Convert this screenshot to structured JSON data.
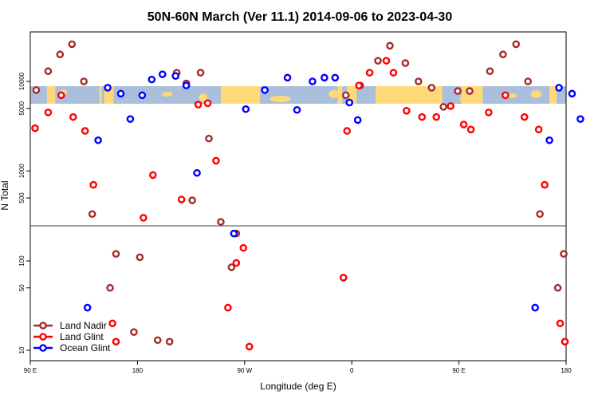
{
  "chart_data": {
    "type": "scatter",
    "title": "50N-60N March (Ver 11.1)   2014-09-06 to 2023-04-30",
    "xlabel": "Longitude (deg E)",
    "ylabel": "N Total",
    "x_ticks": [
      {
        "value": 90,
        "label": "90 E"
      },
      {
        "value": 180,
        "label": "180"
      },
      {
        "value": 270,
        "label": "90 W"
      },
      {
        "value": 360,
        "label": "0"
      },
      {
        "value": 450,
        "label": "90 E"
      },
      {
        "value": 540,
        "label": "180"
      }
    ],
    "xlim": [
      90,
      540
    ],
    "y_scale": "log (two panels)",
    "upper_panel": {
      "ylim": [
        200,
        30000
      ],
      "y_ticks": [
        "500",
        "1000",
        "5000",
        "10000"
      ]
    },
    "lower_panel": {
      "ylim": [
        8,
        220
      ],
      "y_ticks": [
        "10",
        "50",
        "100"
      ]
    },
    "legend": {
      "position": "bottom-left"
    },
    "colors": {
      "land_nadir": "#a52a2a",
      "land_glint": "#ff0000",
      "ocean_glint": "#0000ff",
      "map_land": "#ffd977",
      "map_ocean": "#a9bfdc"
    },
    "series": [
      {
        "name": "Land Nadir",
        "color": "#a52a2a",
        "points": [
          [
            95,
            8000
          ],
          [
            105,
            13000
          ],
          [
            115,
            20000
          ],
          [
            125,
            26000
          ],
          [
            135,
            10000
          ],
          [
            142,
            330
          ],
          [
            157,
            50
          ],
          [
            162,
            120
          ],
          [
            177,
            16
          ],
          [
            182,
            110
          ],
          [
            197,
            13
          ],
          [
            207,
            12.5
          ],
          [
            213,
            12500
          ],
          [
            221,
            9500
          ],
          [
            226,
            470
          ],
          [
            233,
            12500
          ],
          [
            240,
            2300
          ],
          [
            250,
            270
          ],
          [
            259,
            85
          ],
          [
            263,
            200
          ],
          [
            355,
            7000
          ],
          [
            367,
            9000
          ],
          [
            382,
            17000
          ],
          [
            392,
            25000
          ],
          [
            405,
            16000
          ],
          [
            416,
            10000
          ],
          [
            427,
            8500
          ],
          [
            437,
            5200
          ],
          [
            449,
            7800
          ],
          [
            459,
            7800
          ],
          [
            476,
            13000
          ],
          [
            487,
            20000
          ],
          [
            498,
            26000
          ],
          [
            508,
            10000
          ],
          [
            518,
            330
          ],
          [
            533,
            50
          ],
          [
            538,
            120
          ]
        ]
      },
      {
        "name": "Land Glint",
        "color": "#ff0000",
        "points": [
          [
            94,
            3000
          ],
          [
            105,
            4500
          ],
          [
            116,
            7000
          ],
          [
            126,
            4000
          ],
          [
            136,
            2800
          ],
          [
            143,
            700
          ],
          [
            159,
            20
          ],
          [
            162,
            12.5
          ],
          [
            185,
            300
          ],
          [
            193,
            900
          ],
          [
            217,
            480
          ],
          [
            231,
            5500
          ],
          [
            239,
            5700
          ],
          [
            246,
            1300
          ],
          [
            256,
            30
          ],
          [
            263,
            95
          ],
          [
            269,
            140
          ],
          [
            274,
            11
          ],
          [
            353,
            65
          ],
          [
            356,
            2800
          ],
          [
            366,
            9000
          ],
          [
            375,
            12500
          ],
          [
            389,
            17000
          ],
          [
            395,
            12500
          ],
          [
            406,
            4700
          ],
          [
            419,
            4000
          ],
          [
            431,
            4000
          ],
          [
            443,
            5300
          ],
          [
            454,
            3300
          ],
          [
            460,
            2900
          ],
          [
            475,
            4500
          ],
          [
            489,
            7000
          ],
          [
            505,
            4000
          ],
          [
            517,
            2900
          ],
          [
            522,
            700
          ],
          [
            535,
            20
          ],
          [
            539,
            12.5
          ]
        ]
      },
      {
        "name": "Ocean Glint",
        "color": "#0000ff",
        "points": [
          [
            138,
            30
          ],
          [
            147,
            2200
          ],
          [
            155,
            8500
          ],
          [
            166,
            7300
          ],
          [
            174,
            3800
          ],
          [
            184,
            7000
          ],
          [
            192,
            10500
          ],
          [
            201,
            12000
          ],
          [
            212,
            11500
          ],
          [
            221,
            9000
          ],
          [
            230,
            950
          ],
          [
            261,
            200
          ],
          [
            271,
            4900
          ],
          [
            287,
            8000
          ],
          [
            306,
            11000
          ],
          [
            314,
            4800
          ],
          [
            327,
            10000
          ],
          [
            337,
            11000
          ],
          [
            346,
            11000
          ],
          [
            358,
            5800
          ],
          [
            365,
            3700
          ],
          [
            514,
            30
          ],
          [
            526,
            2200
          ],
          [
            534,
            8500
          ],
          [
            545,
            7300
          ],
          [
            552,
            3800
          ]
        ]
      }
    ]
  }
}
